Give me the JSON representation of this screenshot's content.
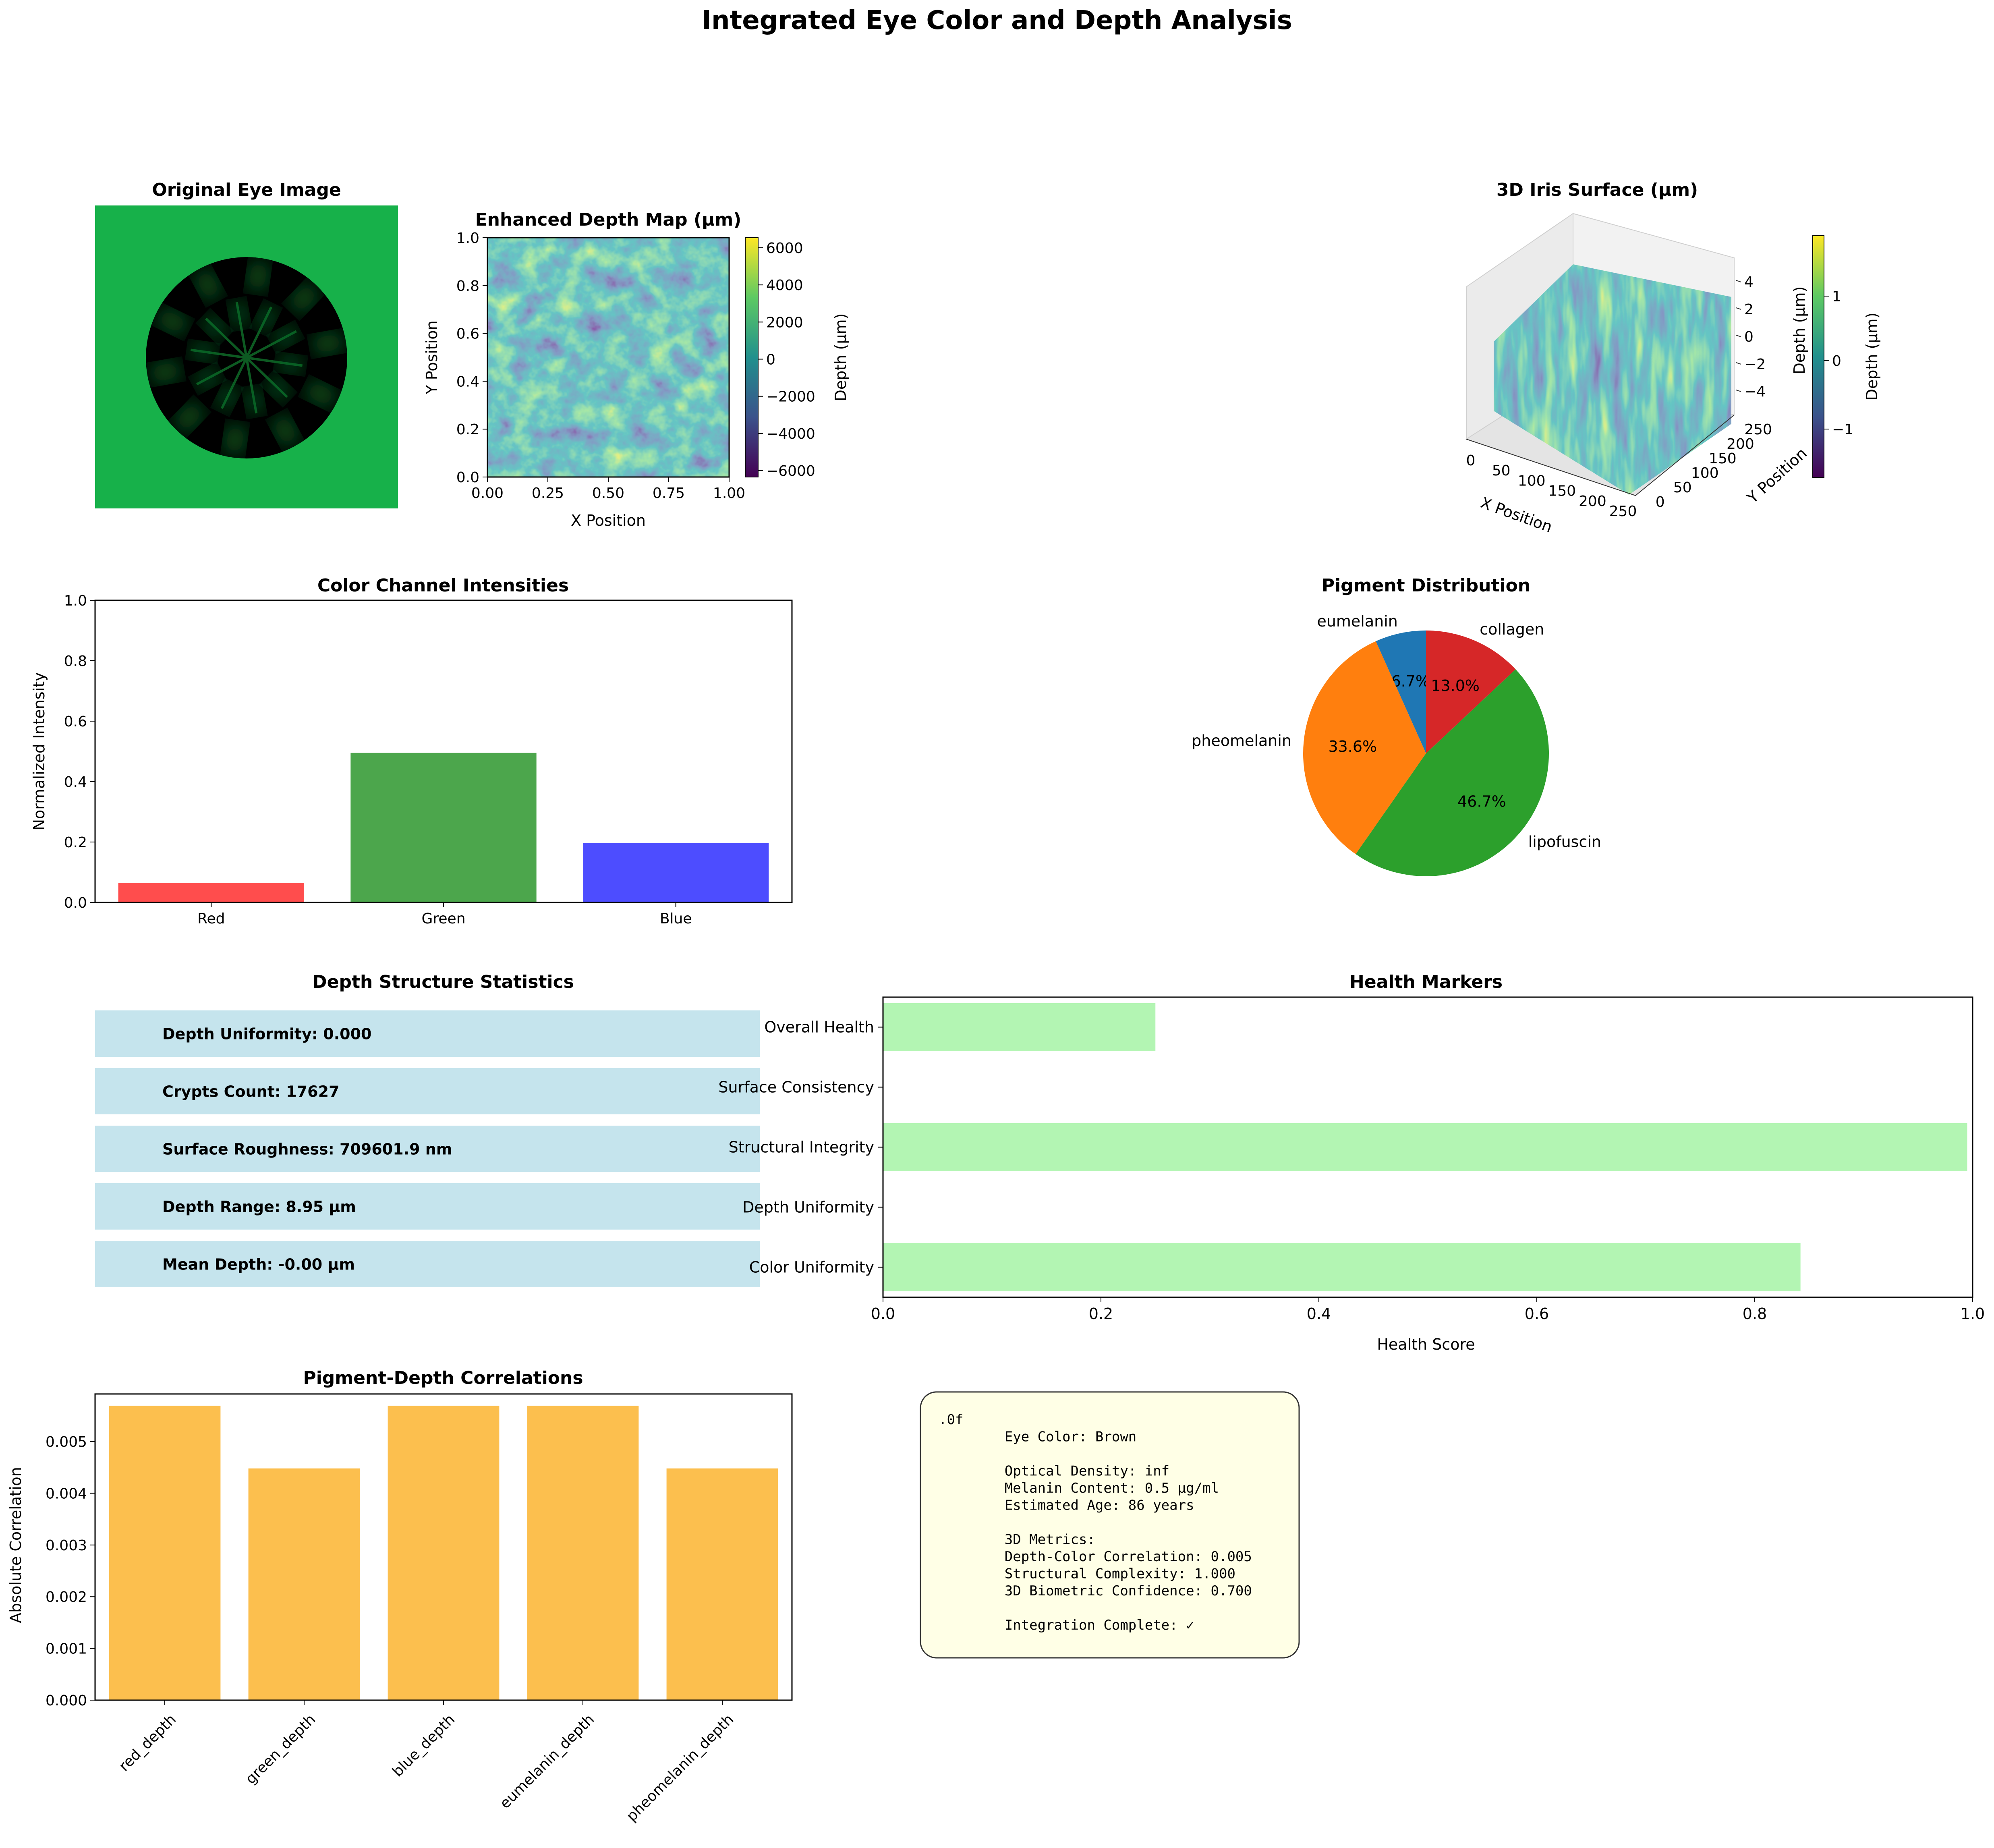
{
  "title": "Integrated Eye Color and Depth Analysis",
  "panels": {
    "eye_image": {
      "title": "Original Eye Image",
      "bg_color": "#17b14a",
      "iris_color": "#000000",
      "spoke_color": "#1a8f3a"
    },
    "depth_map": {
      "title": "Enhanced Depth Map (µm)",
      "xlabel": "X Position",
      "ylabel": "Y Position",
      "ticks": [
        "0.0",
        "0.2",
        "0.4",
        "0.6",
        "0.8",
        "1.0"
      ],
      "xticks": [
        "0.00",
        "0.25",
        "0.50",
        "0.75",
        "1.00"
      ],
      "colorbar_label": "Depth (µm)",
      "colorbar_ticks": [
        "6000",
        "4000",
        "2000",
        "0",
        "−2000",
        "−4000",
        "−6000"
      ]
    },
    "iris_surface": {
      "title": "3D Iris Surface (µm)",
      "xlabel": "X Position",
      "ylabel": "Y Position",
      "zlabel": "Depth (µm)",
      "xticks": [
        "0",
        "50",
        "100",
        "150",
        "200",
        "250"
      ],
      "yticks": [
        "0",
        "50",
        "100",
        "150",
        "200",
        "250"
      ],
      "zticks": [
        "4",
        "2",
        "0",
        "−2",
        "−4"
      ],
      "colorbar_label": "Depth (µm)",
      "colorbar_ticks": [
        "1",
        "0",
        "−1"
      ]
    },
    "stats": {
      "title": "Depth Structure Statistics",
      "rows": [
        "Depth Uniformity: 0.000",
        "Crypts Count: 17627",
        "Surface Roughness: 709601.9 nm",
        "Depth Range: 8.95 µm",
        "Mean Depth: -0.00 µm"
      ]
    },
    "summary": {
      "lines": [
        ".0f",
        "        Eye Color: Brown",
        "",
        "        Optical Density: inf",
        "        Melanin Content: 0.5 µg/ml",
        "        Estimated Age: 86 years",
        "",
        "        3D Metrics:",
        "        Depth-Color Correlation: 0.005",
        "        Structural Complexity: 1.000",
        "        3D Biometric Confidence: 0.700",
        "",
        "        Integration Complete: ✓"
      ]
    }
  },
  "chart_data": [
    {
      "type": "bar",
      "title": "Color Channel Intensities",
      "categories": [
        "Red",
        "Green",
        "Blue"
      ],
      "values": [
        0.065,
        0.495,
        0.197
      ],
      "colors": [
        "#ff4d4d",
        "#4ca64c",
        "#4d4dff"
      ],
      "xlabel": "",
      "ylabel": "Normalized Intensity",
      "ylim": [
        0,
        1.0
      ],
      "yticks": [
        "0.0",
        "0.2",
        "0.4",
        "0.6",
        "0.8",
        "1.0"
      ]
    },
    {
      "type": "pie",
      "title": "Pigment Distribution",
      "labels": [
        "eumelanin",
        "pheomelanin",
        "lipofuscin",
        "collagen"
      ],
      "values": [
        6.7,
        33.6,
        46.7,
        13.0
      ],
      "pct_labels": [
        "6.7%",
        "33.6%",
        "46.7%",
        "13.0%"
      ],
      "colors": [
        "#1f77b4",
        "#ff7f0e",
        "#2ca02c",
        "#d62728"
      ]
    },
    {
      "type": "bar",
      "orientation": "horizontal",
      "title": "Health Markers",
      "categories": [
        "Overall Health",
        "Surface Consistency",
        "Structural Integrity",
        "Depth Uniformity",
        "Color Uniformity"
      ],
      "values": [
        0.25,
        0.0,
        0.995,
        0.0,
        0.842
      ],
      "color": "#b3f5b3",
      "xlabel": "Health Score",
      "xlim": [
        0,
        1.0
      ],
      "xticks": [
        "0.0",
        "0.2",
        "0.4",
        "0.6",
        "0.8",
        "1.0"
      ]
    },
    {
      "type": "bar",
      "title": "Pigment-Depth Correlations",
      "categories": [
        "red_depth",
        "green_depth",
        "blue_depth",
        "eumelanin_depth",
        "pheomelanin_depth"
      ],
      "values": [
        0.00569,
        0.00448,
        0.00569,
        0.00569,
        0.00448
      ],
      "color": "#fcbf4e",
      "xlabel": "",
      "ylabel": "Absolute Correlation",
      "ylim": [
        0,
        0.00592
      ],
      "yticks": [
        "0.000",
        "0.001",
        "0.002",
        "0.003",
        "0.004",
        "0.005"
      ]
    }
  ]
}
